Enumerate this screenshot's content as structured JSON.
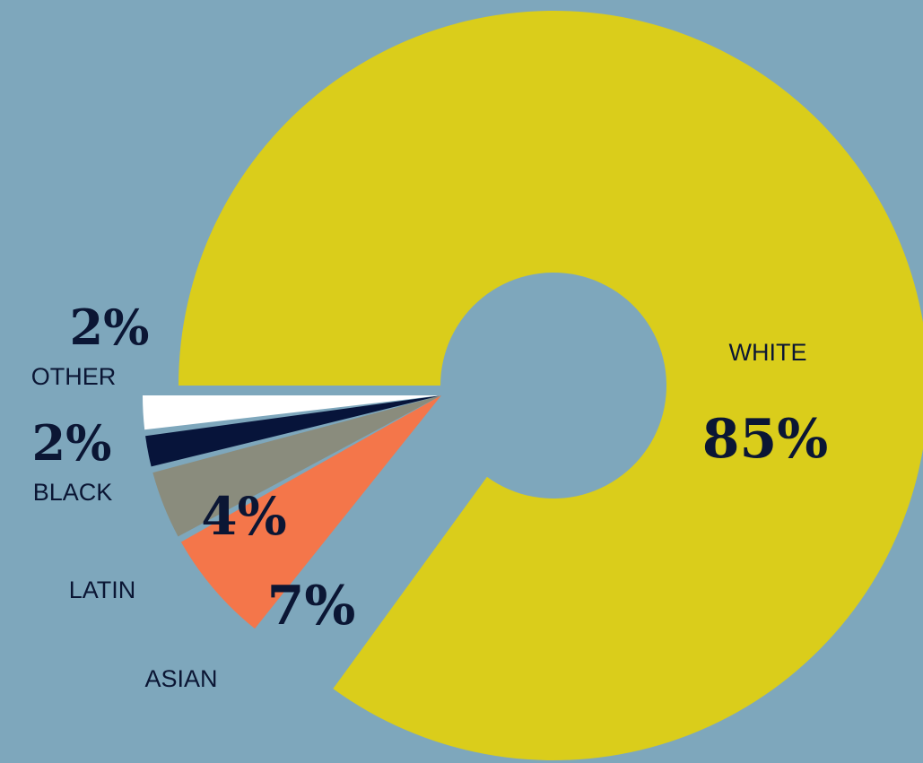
{
  "chart_data": {
    "type": "pie",
    "donut": true,
    "slices": [
      {
        "label": "WHITE",
        "value": 85,
        "display": "85%",
        "color": "#dacd1b"
      },
      {
        "label": "ASIAN",
        "value": 7,
        "display": "7%",
        "color": "#f4764a"
      },
      {
        "label": "LATIN",
        "value": 4,
        "display": "4%",
        "color": "#8a8c7d"
      },
      {
        "label": "BLACK",
        "value": 2,
        "display": "2%",
        "color": "#07143a"
      },
      {
        "label": "OTHER",
        "value": 2,
        "display": "2%",
        "color": "#ffffff"
      }
    ],
    "background_color": "#7ea7bc",
    "text_color": "#0b1634"
  }
}
